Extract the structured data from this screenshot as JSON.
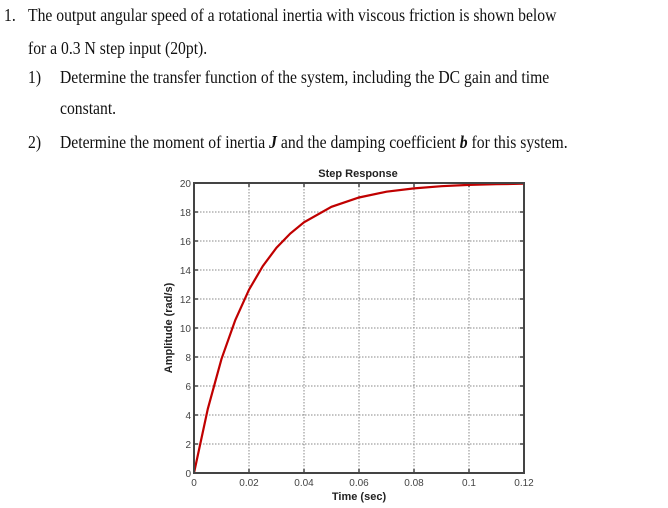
{
  "problem": {
    "number": "1.",
    "line1": "The output angular speed of a rotational inertia with viscous friction is shown below",
    "line2": "for a 0.3 N step input (20pt).",
    "parts": [
      {
        "number": "1)",
        "line1": "Determine the transfer function of the system, including the DC gain and time",
        "line2": "constant."
      },
      {
        "number": "2)",
        "text_a": "Determine the moment of inertia ",
        "sym_a": "J",
        "text_b": " and the damping coefficient ",
        "sym_b": "b",
        "text_c": " for this system."
      }
    ]
  },
  "chart_data": {
    "type": "line",
    "title": "Step Response",
    "xlabel": "Time (sec)",
    "ylabel": "Amplitude (rad/s)",
    "xlim": [
      0,
      0.12
    ],
    "ylim": [
      0,
      20
    ],
    "xticks": [
      "0",
      "0.02",
      "0.04",
      "0.06",
      "0.08",
      "0.1",
      "0.12"
    ],
    "yticks": [
      "0",
      "2",
      "4",
      "6",
      "8",
      "10",
      "12",
      "14",
      "16",
      "18",
      "20"
    ],
    "grid": true,
    "line_color": "#c00000",
    "x": [
      0,
      0.005,
      0.01,
      0.015,
      0.02,
      0.025,
      0.03,
      0.035,
      0.04,
      0.05,
      0.06,
      0.07,
      0.08,
      0.09,
      0.1,
      0.11,
      0.12
    ],
    "y": [
      0,
      4.42,
      7.87,
      10.55,
      12.64,
      14.27,
      15.54,
      16.52,
      17.29,
      18.36,
      19.0,
      19.4,
      19.63,
      19.78,
      19.87,
      19.92,
      19.95
    ]
  }
}
